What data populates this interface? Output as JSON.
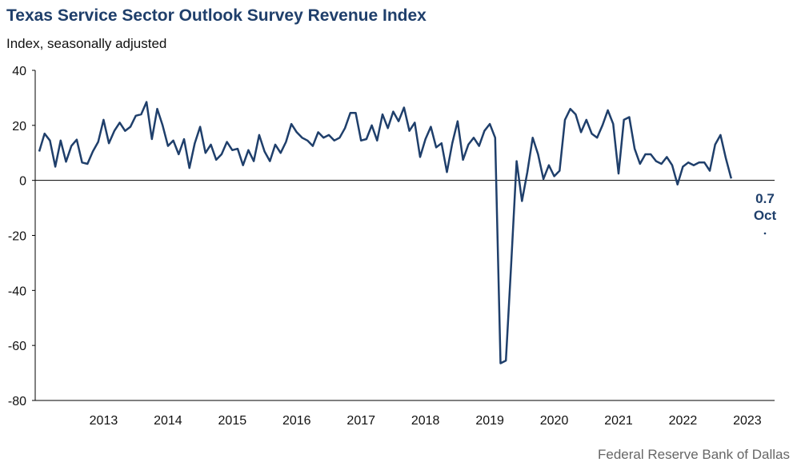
{
  "header": {
    "title": "Texas Service Sector Outlook Survey Revenue Index",
    "subtitle": "Index, seasonally adjusted"
  },
  "footer": {
    "source": "Federal Reserve Bank of Dallas"
  },
  "colors": {
    "title": "#1f3f6b",
    "series": "#1f3f6b",
    "axis": "#000000",
    "text": "#111111",
    "source": "#666666"
  },
  "chart_data": {
    "type": "line",
    "title": "Texas Service Sector Outlook Survey Revenue Index",
    "subtitle": "Index, seasonally adjusted",
    "ylabel": "Index, seasonally adjusted",
    "ylim": [
      -80,
      40
    ],
    "yticks": [
      40,
      20,
      0,
      -20,
      -40,
      -60,
      -80
    ],
    "xlim": [
      "2012-07",
      "2023-10"
    ],
    "xticks": [
      "2013",
      "2014",
      "2015",
      "2016",
      "2017",
      "2018",
      "2019",
      "2020",
      "2021",
      "2022",
      "2023"
    ],
    "grid": false,
    "legend": "none",
    "start": "2012-07",
    "frequency": "monthly",
    "series": [
      {
        "values": [
          10.5,
          17,
          14.5,
          5,
          14.5,
          6.8,
          12.5,
          14.8,
          6.5,
          6,
          10.5,
          14,
          22,
          13.5,
          18,
          21,
          18,
          19.5,
          23.5,
          24,
          28.5,
          15,
          26,
          20,
          12.5,
          14.5,
          9.5,
          15,
          4.5,
          13.5,
          19.5,
          10,
          13,
          7.5,
          9.5,
          14,
          11,
          11.5,
          5.5,
          11,
          7,
          16.5,
          10.5,
          7,
          13,
          10,
          14,
          20.5,
          17.5,
          15.5,
          14.5,
          12.5,
          17.5,
          15.5,
          16.5,
          14.5,
          15.5,
          19,
          24.5,
          24.5,
          14.5,
          15,
          20,
          14.5,
          24,
          19,
          25,
          21.5,
          26.5,
          18,
          21,
          8.5,
          15,
          19.5,
          12,
          13.5,
          3,
          13.5,
          21.5,
          7.5,
          13,
          15.5,
          12.5,
          18,
          20.5,
          15.5,
          -66.5,
          -65.5,
          -30,
          7,
          -7.5,
          3,
          15.5,
          9.5,
          0.5,
          5.5,
          1.5,
          3.5,
          22,
          26,
          24,
          17.5,
          22,
          17,
          15.5,
          20,
          25.5,
          20.5,
          2.5,
          22,
          23,
          11.5,
          6,
          9.5,
          9.5,
          7,
          6,
          8.5,
          5.5,
          -1.5,
          5,
          6.5,
          5.5,
          6.5,
          6.5,
          3.5,
          13,
          16.5,
          8,
          0.7
        ]
      }
    ],
    "annotations": [
      {
        "value": "0.7",
        "label": "Oct",
        "date": "2023-10"
      }
    ]
  }
}
